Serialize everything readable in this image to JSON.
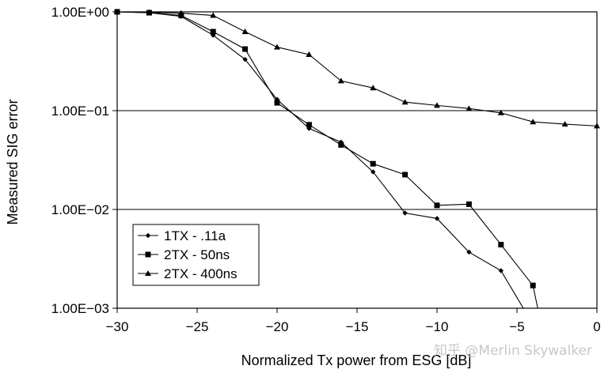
{
  "chart_data": {
    "type": "line",
    "title": "",
    "xlabel": "Normalized Tx power from ESG [dB]",
    "ylabel": "Measured SIG error",
    "xlim": [
      -30,
      0
    ],
    "ylim": [
      0.001,
      1
    ],
    "yscale": "log",
    "xticks": [
      -30,
      -25,
      -20,
      -15,
      -10,
      -5,
      0
    ],
    "xtick_labels": [
      "−30",
      "−25",
      "−20",
      "−15",
      "−10",
      "−5",
      "0"
    ],
    "yticks": [
      1,
      0.1,
      0.01,
      0.001
    ],
    "ytick_labels": [
      "1.00E+00",
      "1.00E−01",
      "1.00E−02",
      "1.00E−03"
    ],
    "grid": "horizontal",
    "legend_position": "lower-left",
    "series": [
      {
        "name": "1TX - .11a",
        "marker": "diamond",
        "x": [
          -30,
          -28,
          -26,
          -24,
          -22,
          -20,
          -18,
          -16,
          -14,
          -12,
          -10,
          -8,
          -6,
          -4.6
        ],
        "y": [
          1.0,
          0.98,
          0.9,
          0.58,
          0.33,
          0.13,
          0.066,
          0.048,
          0.024,
          0.0092,
          0.0081,
          0.0037,
          0.0024,
          0.001
        ]
      },
      {
        "name": "2TX - 50ns",
        "marker": "square",
        "x": [
          -30,
          -28,
          -26,
          -24,
          -22,
          -20,
          -18,
          -16,
          -14,
          -12,
          -10,
          -8,
          -6,
          -4,
          -3.7
        ],
        "y": [
          1.0,
          0.98,
          0.92,
          0.63,
          0.42,
          0.12,
          0.072,
          0.045,
          0.029,
          0.0225,
          0.011,
          0.0113,
          0.0044,
          0.0017,
          0.001
        ]
      },
      {
        "name": "2TX - 400ns",
        "marker": "triangle",
        "x": [
          -30,
          -28,
          -26,
          -24,
          -22,
          -20,
          -18,
          -16,
          -14,
          -12,
          -10,
          -8,
          -6,
          -4,
          -2,
          0
        ],
        "y": [
          1.0,
          0.99,
          0.97,
          0.92,
          0.63,
          0.44,
          0.37,
          0.2,
          0.17,
          0.122,
          0.113,
          0.105,
          0.095,
          0.077,
          0.073,
          0.07
        ]
      }
    ]
  },
  "watermark": "知乎 @Merlin Skywalker"
}
